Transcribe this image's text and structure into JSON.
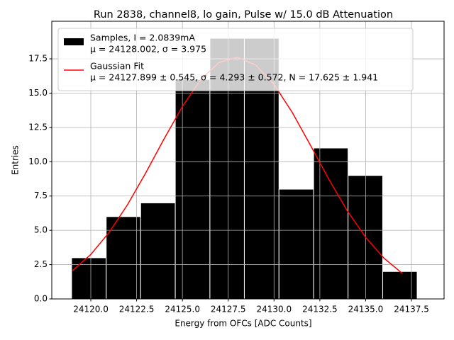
{
  "chart_data": {
    "type": "histogram",
    "title": "Run 2838, channel8, lo gain, Pulse w/ 15.0 dB Attenuation",
    "xlabel": "Energy from OFCs [ADC Counts]",
    "ylabel": "Entries",
    "bins": [
      24118.95,
      24120.84,
      24122.72,
      24124.61,
      24126.5,
      24128.38,
      24130.27,
      24132.16,
      24134.04,
      24135.93,
      24137.81
    ],
    "series": [
      {
        "type": "histogram",
        "name": [
          "Samples, I = 2.0839mA",
          "μ = 24128.002, σ = 3.975"
        ],
        "color": "#000000",
        "values": [
          3,
          6,
          7,
          16,
          19,
          19,
          8,
          11,
          9,
          2
        ]
      },
      {
        "type": "line",
        "name": [
          "Gaussian Fit",
          "μ = 24127.899 ± 0.545, σ = 4.293 ± 0.572, N = 17.625 ± 1.941"
        ],
        "color": "#ff0000",
        "x": [
          24119,
          24120,
          24121,
          24122,
          24123,
          24124,
          24125,
          24126,
          24127,
          24128,
          24129,
          24130,
          24131,
          24132,
          24133,
          24134,
          24135,
          24136,
          24137
        ],
        "values": [
          2.06,
          3.24,
          4.85,
          6.86,
          9.19,
          11.67,
          14.03,
          15.98,
          17.24,
          17.62,
          17.05,
          15.64,
          13.58,
          11.17,
          8.7,
          6.42,
          4.49,
          2.97,
          1.86
        ]
      }
    ],
    "xlim": [
      24117.87,
      24139.28
    ],
    "ylim": [
      0,
      20.24
    ],
    "xticks": [
      {
        "value": 24120,
        "label": "24120.0"
      },
      {
        "value": 24122.5,
        "label": "24122.5"
      },
      {
        "value": 24125,
        "label": "24125.0"
      },
      {
        "value": 24127.5,
        "label": "24127.5"
      },
      {
        "value": 24130,
        "label": "24130.0"
      },
      {
        "value": 24132.5,
        "label": "24132.5"
      },
      {
        "value": 24135,
        "label": "24135.0"
      },
      {
        "value": 24137.5,
        "label": "24137.5"
      }
    ],
    "yticks": [
      {
        "value": 0,
        "label": "0.0"
      },
      {
        "value": 2.5,
        "label": "2.5"
      },
      {
        "value": 5,
        "label": "5.0"
      },
      {
        "value": 7.5,
        "label": "7.5"
      },
      {
        "value": 10,
        "label": "10.0"
      },
      {
        "value": 12.5,
        "label": "12.5"
      },
      {
        "value": 15,
        "label": "15.0"
      },
      {
        "value": 17.5,
        "label": "17.5"
      }
    ],
    "grid": true,
    "legend": "upper left"
  }
}
